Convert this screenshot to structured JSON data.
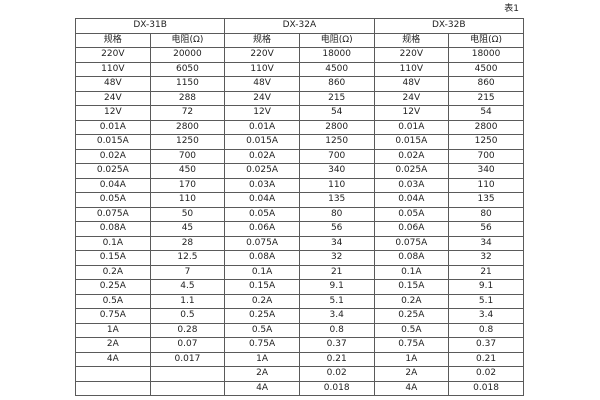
{
  "page": {
    "caption": "表1"
  },
  "table": {
    "groups": [
      {
        "title": "DX-31B",
        "col_headers": [
          "规格",
          "电阻(Ω)"
        ]
      },
      {
        "title": "DX-32A",
        "col_headers": [
          "规格",
          "电阻(Ω)"
        ]
      },
      {
        "title": "DX-32B",
        "col_headers": [
          "规格",
          "电阻(Ω)"
        ]
      }
    ],
    "rows": [
      [
        "220V",
        "20000",
        "220V",
        "18000",
        "220V",
        "18000"
      ],
      [
        "110V",
        "6050",
        "110V",
        "4500",
        "110V",
        "4500"
      ],
      [
        "48V",
        "1150",
        "48V",
        "860",
        "48V",
        "860"
      ],
      [
        "24V",
        "288",
        "24V",
        "215",
        "24V",
        "215"
      ],
      [
        "12V",
        "72",
        "12V",
        "54",
        "12V",
        "54"
      ],
      [
        "0.01A",
        "2800",
        "0.01A",
        "2800",
        "0.01A",
        "2800"
      ],
      [
        "0.015A",
        "1250",
        "0.015A",
        "1250",
        "0.015A",
        "1250"
      ],
      [
        "0.02A",
        "700",
        "0.02A",
        "700",
        "0.02A",
        "700"
      ],
      [
        "0.025A",
        "450",
        "0.025A",
        "340",
        "0.025A",
        "340"
      ],
      [
        "0.04A",
        "170",
        "0.03A",
        "110",
        "0.03A",
        "110"
      ],
      [
        "0.05A",
        "110",
        "0.04A",
        "135",
        "0.04A",
        "135"
      ],
      [
        "0.075A",
        "50",
        "0.05A",
        "80",
        "0.05A",
        "80"
      ],
      [
        "0.08A",
        "45",
        "0.06A",
        "56",
        "0.06A",
        "56"
      ],
      [
        "0.1A",
        "28",
        "0.075A",
        "34",
        "0.075A",
        "34"
      ],
      [
        "0.15A",
        "12.5",
        "0.08A",
        "32",
        "0.08A",
        "32"
      ],
      [
        "0.2A",
        "7",
        "0.1A",
        "21",
        "0.1A",
        "21"
      ],
      [
        "0.25A",
        "4.5",
        "0.15A",
        "9.1",
        "0.15A",
        "9.1"
      ],
      [
        "0.5A",
        "1.1",
        "0.2A",
        "5.1",
        "0.2A",
        "5.1"
      ],
      [
        "0.75A",
        "0.5",
        "0.25A",
        "3.4",
        "0.25A",
        "3.4"
      ],
      [
        "1A",
        "0.28",
        "0.5A",
        "0.8",
        "0.5A",
        "0.8"
      ],
      [
        "2A",
        "0.07",
        "0.75A",
        "0.37",
        "0.75A",
        "0.37"
      ],
      [
        "4A",
        "0.017",
        "1A",
        "0.21",
        "1A",
        "0.21"
      ],
      [
        "",
        "",
        "2A",
        "0.02",
        "2A",
        "0.02"
      ],
      [
        "",
        "",
        "4A",
        "0.018",
        "4A",
        "0.018"
      ]
    ]
  },
  "colors": {
    "border": "#5a5a5a",
    "text": "#222222",
    "background": "#ffffff"
  }
}
